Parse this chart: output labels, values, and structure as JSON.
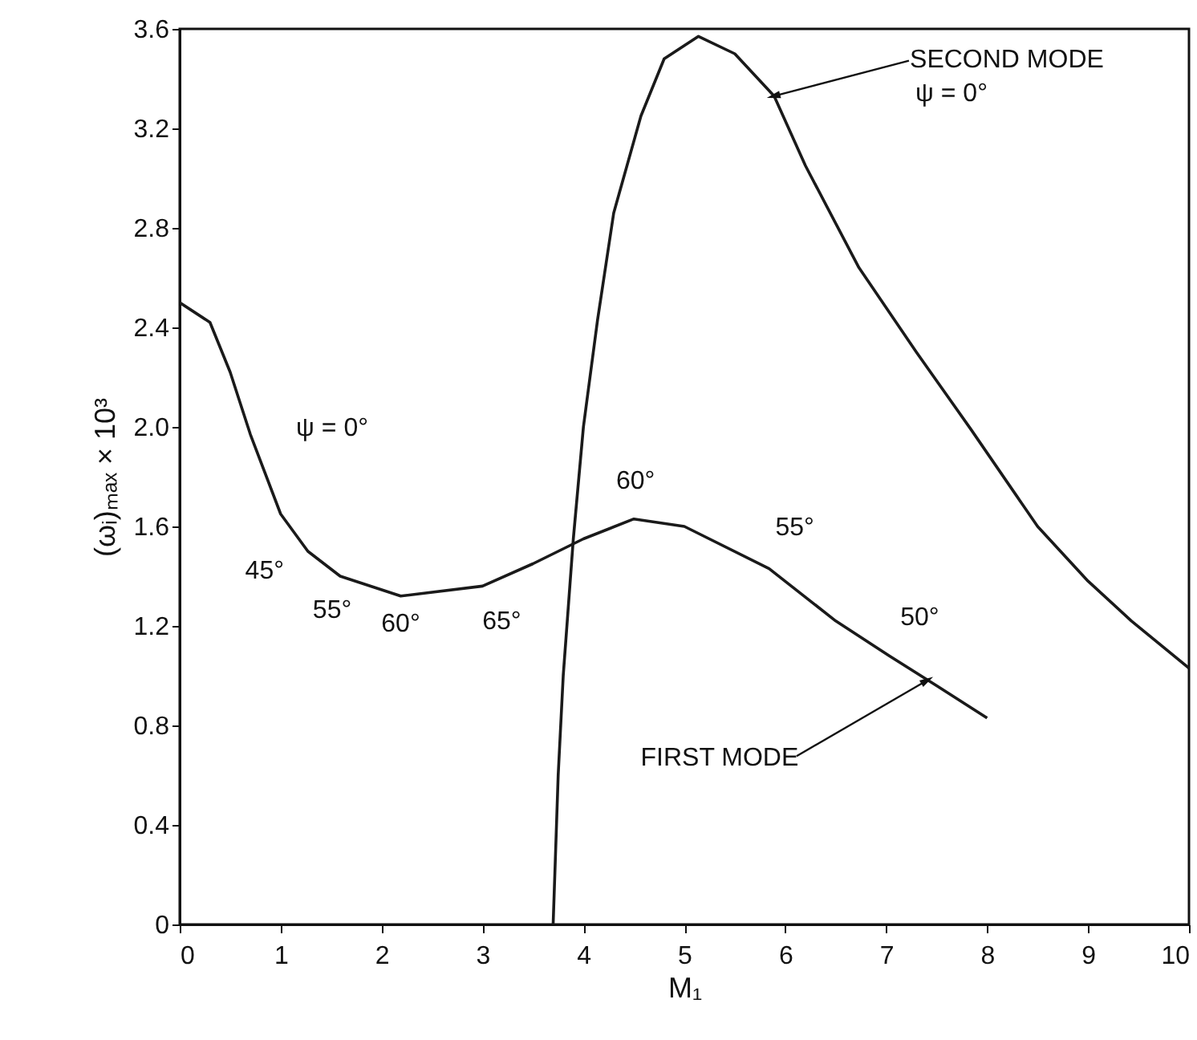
{
  "chart_data": {
    "type": "line",
    "xlabel": "M₁",
    "ylabel": "(ωᵢ)ₘₐₓ × 10³",
    "xlim": [
      0,
      10
    ],
    "xticks": [
      0,
      1,
      2,
      3,
      4,
      5,
      6,
      7,
      8,
      9,
      10
    ],
    "ylim": [
      0,
      3.6
    ],
    "yticks": [
      0,
      0.4,
      0.8,
      1.2,
      1.6,
      {
        "value": 2,
        "label": "2.0"
      },
      2.4,
      2.8,
      3.2,
      3.6
    ],
    "grid": false,
    "series": [
      {
        "color": "#1a1a1a",
        "x": [
          0,
          0.3,
          0.5,
          0.7,
          1.0,
          1.27,
          1.59,
          2.19,
          3.0,
          3.5,
          4.0,
          4.5,
          5.0,
          5.84,
          6.5,
          7.03,
          7.5,
          8.0
        ],
        "values": [
          2.5,
          2.42,
          2.22,
          1.97,
          1.65,
          1.5,
          1.4,
          1.32,
          1.36,
          1.45,
          1.55,
          1.63,
          1.6,
          1.43,
          1.22,
          1.08,
          0.96,
          0.83
        ]
      },
      {
        "color": "#1a1a1a",
        "x": [
          3.7,
          3.75,
          3.8,
          3.9,
          4.0,
          4.14,
          4.3,
          4.57,
          4.8,
          5.14,
          5.5,
          5.89,
          6.2,
          6.73,
          7.3,
          7.84,
          8.5,
          9.0,
          9.43,
          10
        ],
        "values": [
          0,
          0.6,
          1.0,
          1.55,
          2.0,
          2.43,
          2.86,
          3.25,
          3.48,
          3.57,
          3.5,
          3.33,
          3.05,
          2.64,
          2.3,
          1.99,
          1.6,
          1.38,
          1.22,
          1.03
        ]
      }
    ],
    "annotations": [
      {
        "text": "ψ = 0°",
        "x": 0.7,
        "y": 1.97
      },
      {
        "text": "45°",
        "x": 1.27,
        "y": 1.5
      },
      {
        "text": "55°",
        "x": 1.59,
        "y": 1.4
      },
      {
        "text": "60°",
        "x": 2.19,
        "y": 1.32
      },
      {
        "text": "65°",
        "x": 3.0,
        "y": 1.36
      },
      {
        "text": "60°",
        "x": 4.5,
        "y": 1.63
      },
      {
        "text": "55°",
        "x": 5.84,
        "y": 1.43
      },
      {
        "text": "50°",
        "x": 7.03,
        "y": 1.08
      },
      {
        "text": "FIRST MODE",
        "x": 7.4,
        "y": 0.98
      },
      {
        "text": "SECOND MODE",
        "x": 5.89,
        "y": 3.33
      },
      "ψ = 0°"
    ]
  }
}
